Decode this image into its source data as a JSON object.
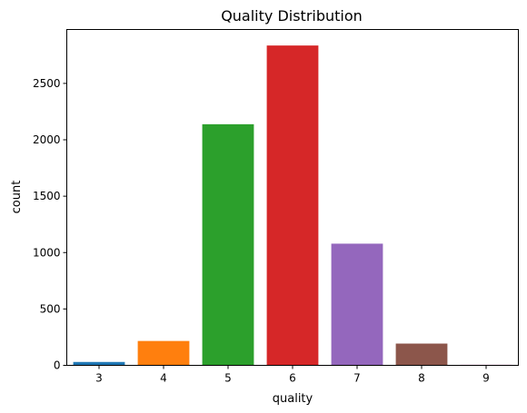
{
  "chart_data": {
    "type": "bar",
    "title": "Quality Distribution",
    "xlabel": "quality",
    "ylabel": "count",
    "categories": [
      "3",
      "4",
      "5",
      "6",
      "7",
      "8",
      "9"
    ],
    "values": [
      30,
      216,
      2138,
      2836,
      1079,
      193,
      5
    ],
    "colors": [
      "#1f77b4",
      "#ff7f0e",
      "#2ca02c",
      "#d62728",
      "#9467bd",
      "#8c564b",
      "#e377c2"
    ],
    "ylim": [
      0,
      2978
    ],
    "yticks": [
      0,
      500,
      1000,
      1500,
      2000,
      2500
    ],
    "grid": false,
    "legend": "none"
  }
}
